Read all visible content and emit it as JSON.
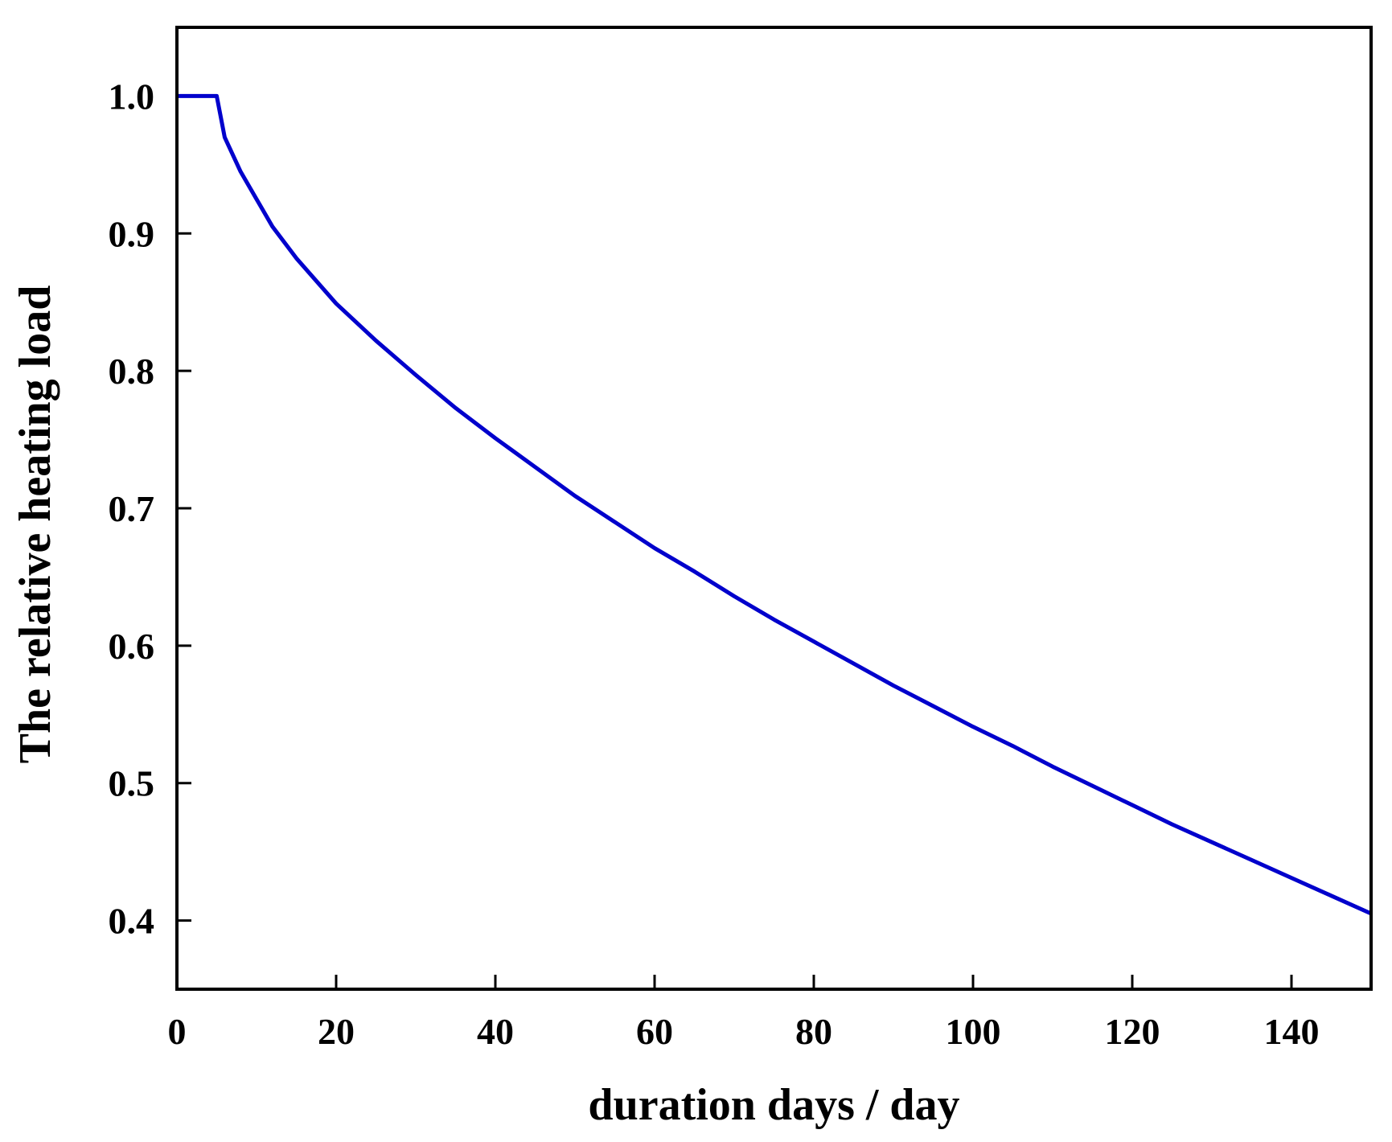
{
  "chart_data": {
    "type": "line",
    "title": "",
    "xlabel": "duration days / day",
    "ylabel": "The relative heating load",
    "xlim": [
      0,
      150
    ],
    "ylim": [
      0.35,
      1.05
    ],
    "xticks": [
      0,
      20,
      40,
      60,
      80,
      100,
      120,
      140
    ],
    "xtick_labels": [
      "0",
      "20",
      "40",
      "60",
      "80",
      "100",
      "120",
      "140"
    ],
    "yticks": [
      0.4,
      0.5,
      0.6,
      0.7,
      0.8,
      0.9,
      1.0
    ],
    "ytick_labels": [
      "0.4",
      "0.5",
      "0.6",
      "0.7",
      "0.8",
      "0.9",
      "1.0"
    ],
    "grid": false,
    "legend": null,
    "series": [
      {
        "name": "relative heating load",
        "color": "#0000cc",
        "x": [
          0,
          5,
          6,
          8,
          10,
          12,
          15,
          20,
          25,
          30,
          35,
          40,
          45,
          50,
          55,
          60,
          65,
          70,
          75,
          80,
          85,
          90,
          95,
          100,
          105,
          110,
          115,
          120,
          125,
          130,
          135,
          140,
          145,
          150
        ],
        "y": [
          1.0,
          1.0,
          0.97,
          0.945,
          0.925,
          0.905,
          0.882,
          0.849,
          0.822,
          0.797,
          0.773,
          0.751,
          0.73,
          0.709,
          0.69,
          0.671,
          0.654,
          0.636,
          0.619,
          0.603,
          0.587,
          0.571,
          0.556,
          0.541,
          0.527,
          0.512,
          0.498,
          0.484,
          0.47,
          0.457,
          0.444,
          0.431,
          0.418,
          0.405
        ]
      }
    ]
  },
  "colors": {
    "line": "#0000cc",
    "axes": "#000000",
    "background": "#ffffff"
  }
}
